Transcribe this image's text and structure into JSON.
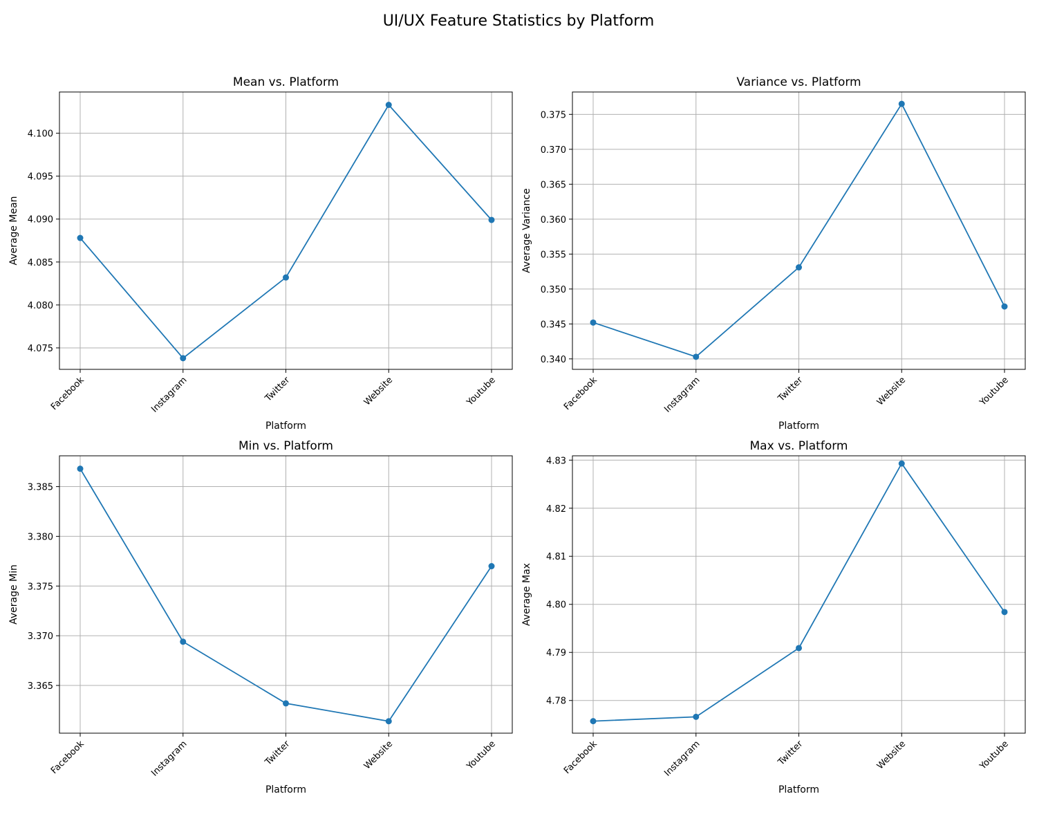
{
  "figure": {
    "suptitle": "UI/UX Feature Statistics by Platform"
  },
  "colors": {
    "series": "#1f77b4",
    "grid": "#b0b0b0"
  },
  "chart_data": [
    {
      "type": "line",
      "title": "Mean vs. Platform",
      "xlabel": "Platform",
      "ylabel": "Average Mean",
      "categories": [
        "Facebook",
        "Instagram",
        "Twitter",
        "Website",
        "Youtube"
      ],
      "values": [
        4.0878,
        4.0738,
        4.0832,
        4.1033,
        4.0899
      ],
      "ylim": [
        4.0725,
        4.1048
      ],
      "yticks": [
        "4.075",
        "4.080",
        "4.085",
        "4.090",
        "4.095",
        "4.100"
      ],
      "grid": true,
      "marker": "circle"
    },
    {
      "type": "line",
      "title": "Variance vs. Platform",
      "xlabel": "Platform",
      "ylabel": "Average Variance",
      "categories": [
        "Facebook",
        "Instagram",
        "Twitter",
        "Website",
        "Youtube"
      ],
      "values": [
        0.3452,
        0.3403,
        0.3531,
        0.3765,
        0.3475
      ],
      "ylim": [
        0.3385,
        0.3782
      ],
      "yticks": [
        "0.340",
        "0.345",
        "0.350",
        "0.355",
        "0.360",
        "0.365",
        "0.370",
        "0.375"
      ],
      "grid": true,
      "marker": "circle"
    },
    {
      "type": "line",
      "title": "Min vs. Platform",
      "xlabel": "Platform",
      "ylabel": "Average Min",
      "categories": [
        "Facebook",
        "Instagram",
        "Twitter",
        "Website",
        "Youtube"
      ],
      "values": [
        3.3868,
        3.3694,
        3.3632,
        3.3614,
        3.377
      ],
      "ylim": [
        3.3602,
        3.3881
      ],
      "yticks": [
        "3.365",
        "3.370",
        "3.375",
        "3.380",
        "3.385"
      ],
      "grid": true,
      "marker": "circle"
    },
    {
      "type": "line",
      "title": "Max vs. Platform",
      "xlabel": "Platform",
      "ylabel": "Average Max",
      "categories": [
        "Facebook",
        "Instagram",
        "Twitter",
        "Website",
        "Youtube"
      ],
      "values": [
        4.7757,
        4.7766,
        4.7909,
        4.8293,
        4.7984
      ],
      "ylim": [
        4.7732,
        4.8309
      ],
      "yticks": [
        "4.78",
        "4.79",
        "4.80",
        "4.81",
        "4.82",
        "4.83"
      ],
      "grid": true,
      "marker": "circle"
    }
  ]
}
